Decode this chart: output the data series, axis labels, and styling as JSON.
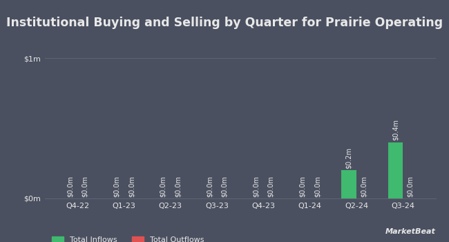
{
  "title": "Institutional Buying and Selling by Quarter for Prairie Operating",
  "quarters": [
    "Q4-22",
    "Q1-23",
    "Q2-23",
    "Q3-23",
    "Q4-23",
    "Q1-24",
    "Q2-24",
    "Q3-24"
  ],
  "inflows": [
    0.0,
    0.0,
    0.0,
    0.0,
    0.0,
    0.0,
    0.2,
    0.4
  ],
  "outflows": [
    0.0,
    0.0,
    0.0,
    0.0,
    0.0,
    0.0,
    0.0,
    0.0
  ],
  "inflow_color": "#3fba6e",
  "outflow_color": "#e05252",
  "background_color": "#4a5060",
  "text_color": "#e8e8e8",
  "grid_color": "#5e6472",
  "bar_width": 0.32,
  "ylim": [
    0,
    1.0
  ],
  "yticks": [
    0,
    1.0
  ],
  "ytick_labels": [
    "$0m",
    "$1m"
  ],
  "legend_inflows": "Total Inflows",
  "legend_outflows": "Total Outflows",
  "title_fontsize": 12.5,
  "tick_fontsize": 8,
  "label_fontsize": 7
}
